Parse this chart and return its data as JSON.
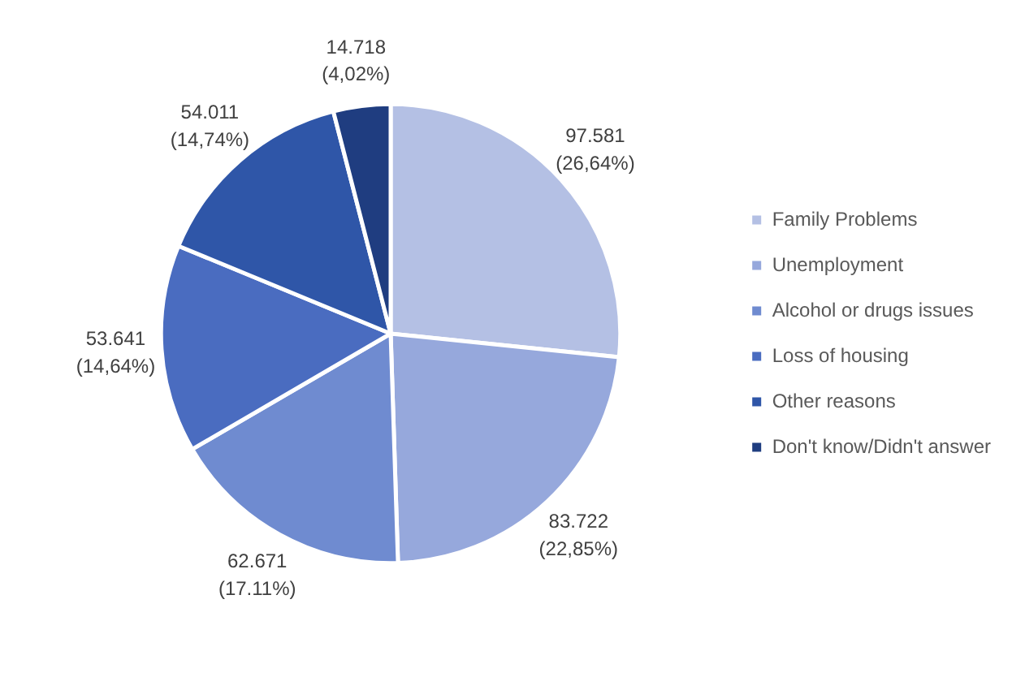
{
  "chart_data": {
    "type": "pie",
    "categories": [
      "Family Problems",
      "Unemployment",
      "Alcohol or drugs issues",
      "Loss of housing",
      "Other reasons",
      "Don't know/Didn't answer"
    ],
    "values": [
      97581,
      83722,
      62671,
      53641,
      54011,
      14718
    ],
    "value_labels": [
      "97.581\n(26,64%)",
      "83.722\n(22,85%)",
      "62.671\n(17.11%)",
      "53.641\n(14,64%)",
      "54.011\n(14,74%)",
      "14.718\n(4,02%)"
    ],
    "colors": [
      "#b4c0e4",
      "#96a8dc",
      "#6f8bd0",
      "#4a6cc0",
      "#2f56a8",
      "#1f3d80"
    ],
    "legend": "right"
  }
}
